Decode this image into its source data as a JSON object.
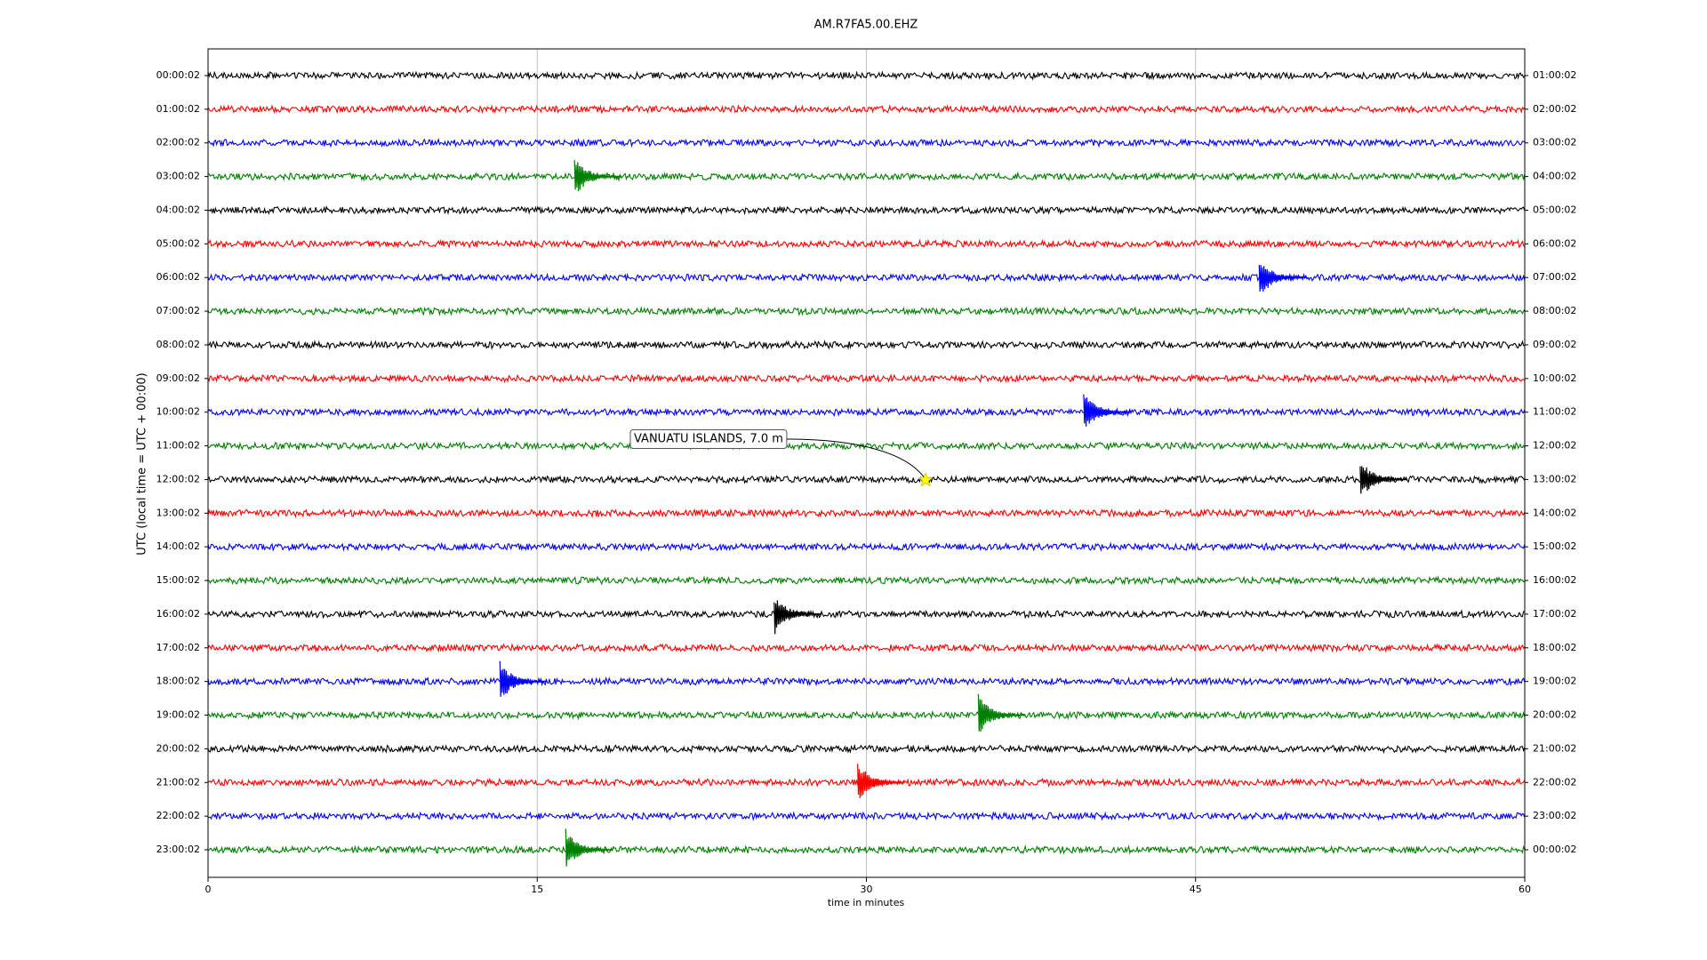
{
  "chart_data": {
    "type": "dayplot",
    "title": "AM.R7FA5.00.EHZ",
    "xlabel": "time in minutes",
    "ylabel": "UTC (local time = UTC + 00:00)",
    "xlim": [
      0,
      60
    ],
    "xticks": [
      0,
      15,
      30,
      45,
      60
    ],
    "grid": true,
    "rows": [
      {
        "label": "00:00:02",
        "right_label": "01:00:02",
        "color": "#000000"
      },
      {
        "label": "01:00:02",
        "right_label": "02:00:02",
        "color": "#ff0000"
      },
      {
        "label": "02:00:02",
        "right_label": "03:00:02",
        "color": "#0000ff"
      },
      {
        "label": "03:00:02",
        "right_label": "04:00:02",
        "color": "#008000"
      },
      {
        "label": "04:00:02",
        "right_label": "05:00:02",
        "color": "#000000"
      },
      {
        "label": "05:00:02",
        "right_label": "06:00:02",
        "color": "#ff0000"
      },
      {
        "label": "06:00:02",
        "right_label": "07:00:02",
        "color": "#0000ff"
      },
      {
        "label": "07:00:02",
        "right_label": "08:00:02",
        "color": "#008000"
      },
      {
        "label": "08:00:02",
        "right_label": "09:00:02",
        "color": "#000000"
      },
      {
        "label": "09:00:02",
        "right_label": "10:00:02",
        "color": "#ff0000"
      },
      {
        "label": "10:00:02",
        "right_label": "11:00:02",
        "color": "#0000ff"
      },
      {
        "label": "11:00:02",
        "right_label": "12:00:02",
        "color": "#008000"
      },
      {
        "label": "12:00:02",
        "right_label": "13:00:02",
        "color": "#000000"
      },
      {
        "label": "13:00:02",
        "right_label": "14:00:02",
        "color": "#ff0000"
      },
      {
        "label": "14:00:02",
        "right_label": "15:00:02",
        "color": "#0000ff"
      },
      {
        "label": "15:00:02",
        "right_label": "16:00:02",
        "color": "#008000"
      },
      {
        "label": "16:00:02",
        "right_label": "17:00:02",
        "color": "#000000"
      },
      {
        "label": "17:00:02",
        "right_label": "18:00:02",
        "color": "#ff0000"
      },
      {
        "label": "18:00:02",
        "right_label": "19:00:02",
        "color": "#0000ff"
      },
      {
        "label": "19:00:02",
        "right_label": "20:00:02",
        "color": "#008000"
      },
      {
        "label": "20:00:02",
        "right_label": "21:00:02",
        "color": "#000000"
      },
      {
        "label": "21:00:02",
        "right_label": "22:00:02",
        "color": "#ff0000"
      },
      {
        "label": "22:00:02",
        "right_label": "23:00:02",
        "color": "#0000ff"
      },
      {
        "label": "23:00:02",
        "right_label": "00:00:02",
        "color": "#008000"
      }
    ],
    "events": [
      {
        "row": 3,
        "x": 16.7
      },
      {
        "row": 6,
        "x": 47.9
      },
      {
        "row": 10,
        "x": 39.9
      },
      {
        "row": 12,
        "x": 52.5
      },
      {
        "row": 16,
        "x": 25.8
      },
      {
        "row": 18,
        "x": 13.3
      },
      {
        "row": 19,
        "x": 35.1
      },
      {
        "row": 21,
        "x": 29.6
      },
      {
        "row": 23,
        "x": 16.3
      }
    ],
    "annotation": {
      "text": "VANUATU ISLANDS, 7.0 m",
      "row": 12,
      "x": 32.7
    }
  }
}
